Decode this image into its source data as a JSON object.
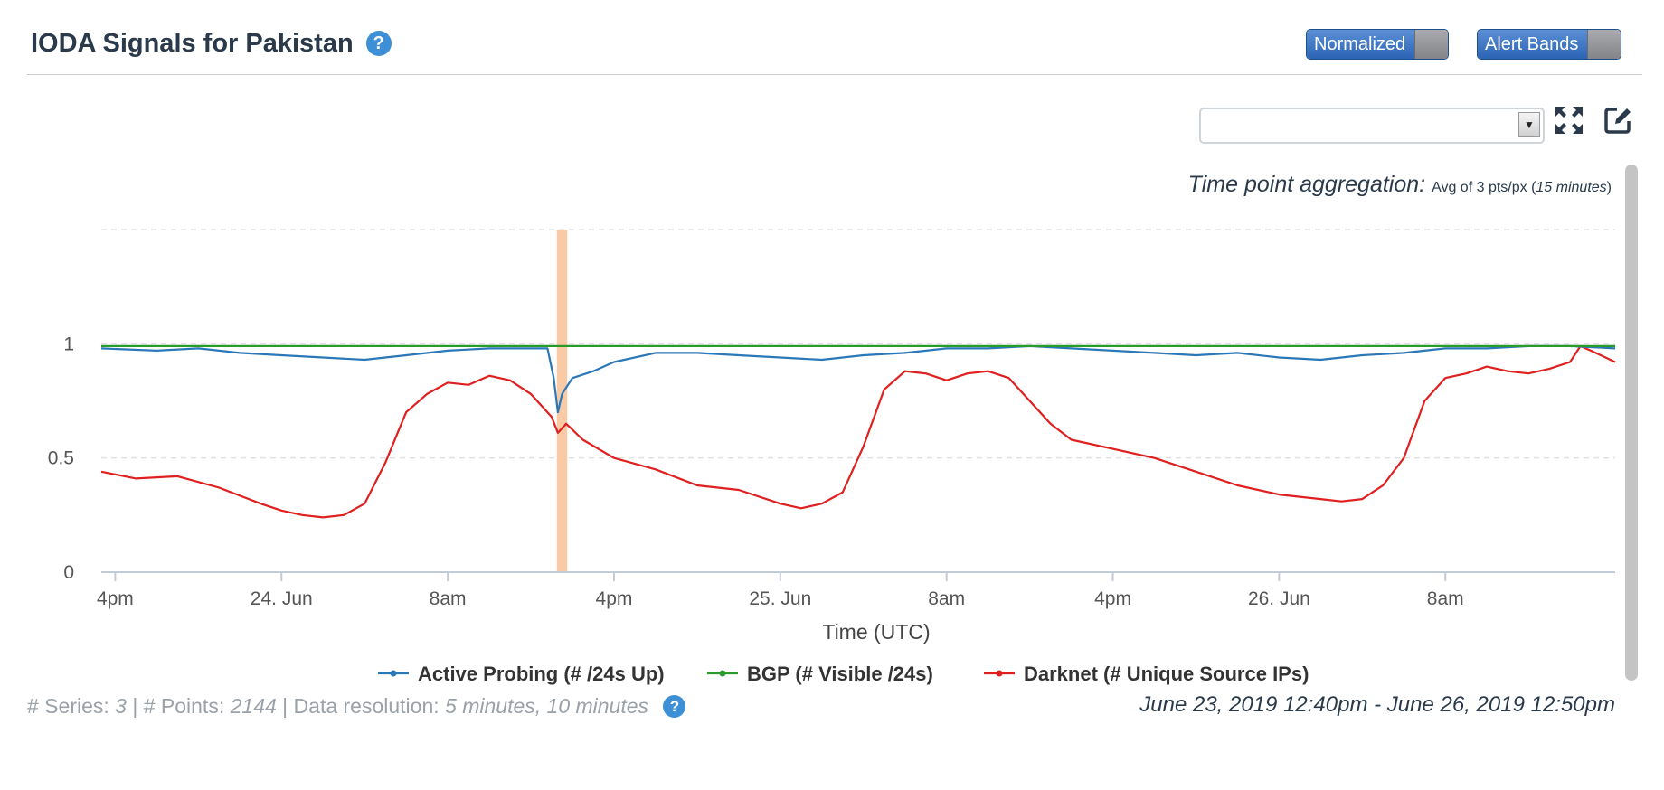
{
  "header": {
    "title": "IODA Signals for Pakistan",
    "help_icon": "question-circle-icon",
    "normalized_label": "Normalized",
    "alert_bands_label": "Alert Bands"
  },
  "tools": {
    "selected_value": "",
    "fullscreen_icon": "expand-arrows-icon",
    "edit_icon": "edit-square-icon"
  },
  "aggregation": {
    "label": "Time point aggregation:",
    "prefix": "Avg of 3 pts/px (",
    "interval": "15 minutes",
    "suffix": ")"
  },
  "footer": {
    "series_label": "# Series:",
    "series_count": "3",
    "points_label": "| # Points:",
    "points_count": "2144",
    "resolution_label": "| Data resolution:",
    "resolution_value": "5 minutes, 10 minutes",
    "date_range": "June 23, 2019 12:40pm - June 26, 2019 12:50pm"
  },
  "colors": {
    "active_probing": "#2b78b8",
    "bgp": "#2a9a2a",
    "darknet": "#e01f1f",
    "alert_band": "#f8cba6",
    "accent_blue": "#3d8fd6"
  },
  "chart_data": {
    "type": "line",
    "xlabel": "Time (UTC)",
    "ylabel": "",
    "ylim": [
      0,
      1.5
    ],
    "y_ticks": [
      {
        "value": 0,
        "label": "0"
      },
      {
        "value": 0.5,
        "label": "0.5"
      },
      {
        "value": 1,
        "label": "1"
      }
    ],
    "x_range_hours": [
      -8.67,
      64.17
    ],
    "x_ticks": [
      {
        "hour": -8,
        "label": "4pm"
      },
      {
        "hour": 0,
        "label": "24. Jun"
      },
      {
        "hour": 8,
        "label": "8am"
      },
      {
        "hour": 16,
        "label": "4pm"
      },
      {
        "hour": 24,
        "label": "25. Jun"
      },
      {
        "hour": 32,
        "label": "8am"
      },
      {
        "hour": 40,
        "label": "4pm"
      },
      {
        "hour": 48,
        "label": "26. Jun"
      },
      {
        "hour": 56,
        "label": "8am"
      }
    ],
    "grid": true,
    "legend_position": "bottom-center",
    "alert_band": {
      "start_hour": 13.25,
      "end_hour": 13.75
    },
    "series": [
      {
        "name": "Active Probing (# /24s Up)",
        "x": [
          -8.67,
          -6,
          -4,
          -2,
          0,
          2,
          4,
          6,
          8,
          10,
          12,
          12.8,
          13.1,
          13.3,
          13.5,
          14,
          15,
          16,
          18,
          20,
          22,
          24,
          26,
          28,
          30,
          32,
          34,
          36,
          38,
          40,
          42,
          44,
          46,
          48,
          50,
          52,
          54,
          56,
          58,
          60,
          62,
          64.17
        ],
        "values": [
          0.98,
          0.97,
          0.98,
          0.96,
          0.95,
          0.94,
          0.93,
          0.95,
          0.97,
          0.98,
          0.98,
          0.98,
          0.85,
          0.7,
          0.78,
          0.85,
          0.88,
          0.92,
          0.96,
          0.96,
          0.95,
          0.94,
          0.93,
          0.95,
          0.96,
          0.98,
          0.98,
          0.99,
          0.98,
          0.97,
          0.96,
          0.95,
          0.96,
          0.94,
          0.93,
          0.95,
          0.96,
          0.98,
          0.98,
          0.99,
          0.99,
          0.98
        ]
      },
      {
        "name": "BGP (# Visible /24s)",
        "x": [
          -8.67,
          64.17
        ],
        "values": [
          0.99,
          0.99
        ]
      },
      {
        "name": "Darknet (# Unique Source IPs)",
        "x": [
          -8.67,
          -7,
          -5,
          -3,
          -1,
          0,
          1,
          2,
          3,
          4,
          5,
          6,
          7,
          8,
          9,
          10,
          11,
          12,
          13,
          13.3,
          13.7,
          14.5,
          16,
          18,
          20,
          22,
          24,
          25,
          26,
          27,
          28,
          29,
          30,
          31,
          32,
          33,
          34,
          35,
          36,
          37,
          38,
          40,
          42,
          44,
          46,
          48,
          50,
          51,
          52,
          53,
          54,
          55,
          56,
          57,
          58,
          59,
          60,
          61,
          62,
          62.5,
          63,
          64.17
        ],
        "values": [
          0.44,
          0.41,
          0.42,
          0.37,
          0.3,
          0.27,
          0.25,
          0.24,
          0.25,
          0.3,
          0.48,
          0.7,
          0.78,
          0.83,
          0.82,
          0.86,
          0.84,
          0.78,
          0.68,
          0.61,
          0.65,
          0.58,
          0.5,
          0.45,
          0.38,
          0.36,
          0.3,
          0.28,
          0.3,
          0.35,
          0.55,
          0.8,
          0.88,
          0.87,
          0.84,
          0.87,
          0.88,
          0.85,
          0.75,
          0.65,
          0.58,
          0.54,
          0.5,
          0.44,
          0.38,
          0.34,
          0.32,
          0.31,
          0.32,
          0.38,
          0.5,
          0.75,
          0.85,
          0.87,
          0.9,
          0.88,
          0.87,
          0.89,
          0.92,
          0.99,
          0.97,
          0.92
        ]
      }
    ]
  }
}
